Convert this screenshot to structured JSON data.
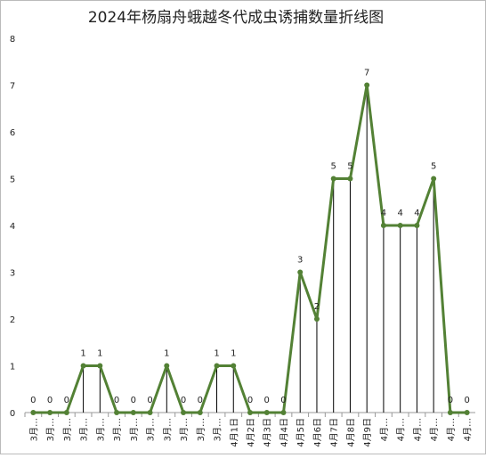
{
  "chart_data": {
    "type": "line",
    "title": "2024年杨扇舟蛾越冬代成虫诱捕数量折线图",
    "categories": [
      "3月…",
      "3月…",
      "3月…",
      "3月…",
      "3月…",
      "3月…",
      "3月…",
      "3月…",
      "3月…",
      "3月…",
      "3月…",
      "3月…",
      "4月1日",
      "4月2日",
      "4月3日",
      "4月4日",
      "4月5日",
      "4月6日",
      "4月7日",
      "4月8日",
      "4月9日",
      "4月…",
      "4月…",
      "4月…",
      "4月…",
      "4月…",
      "4月…"
    ],
    "series": [
      {
        "name": "诱捕数量",
        "color": "#538135",
        "values": [
          0,
          0,
          0,
          1,
          1,
          0,
          0,
          0,
          1,
          0,
          0,
          1,
          1,
          0,
          0,
          0,
          3,
          2,
          5,
          5,
          7,
          4,
          4,
          4,
          5,
          0,
          0
        ]
      }
    ],
    "ylim": [
      0,
      8
    ],
    "yticks": [
      0,
      1,
      2,
      3,
      4,
      5,
      6,
      7,
      8
    ],
    "drop_lines": true,
    "data_labels": true
  }
}
